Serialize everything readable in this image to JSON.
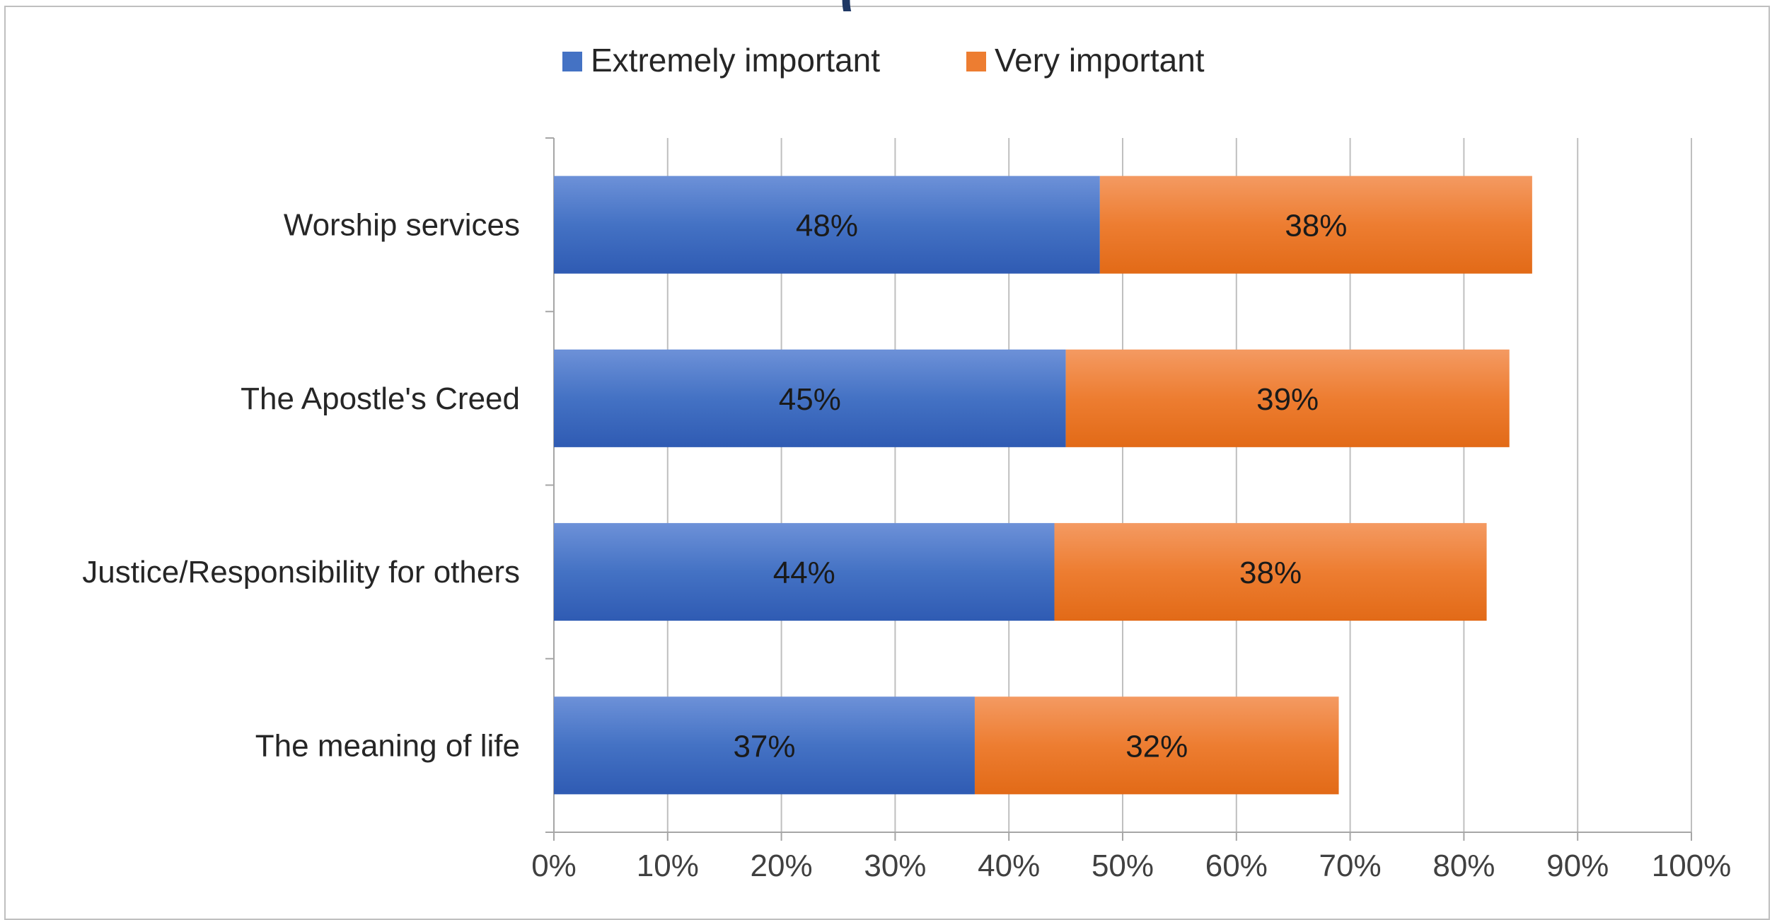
{
  "title_fragment": "(",
  "chart_data": {
    "type": "bar",
    "orientation": "horizontal",
    "stacked": true,
    "categories": [
      "Worship services",
      "The Apostle's Creed",
      "Justice/Responsibility for others",
      "The meaning of life"
    ],
    "series": [
      {
        "name": "Extremely important",
        "values": [
          48,
          45,
          44,
          37
        ],
        "labels": [
          "48%",
          "45%",
          "44%",
          "37%"
        ],
        "color": "#4472c4"
      },
      {
        "name": "Very important",
        "values": [
          38,
          39,
          38,
          32
        ],
        "labels": [
          "38%",
          "39%",
          "38%",
          "32%"
        ],
        "color": "#ed7d31"
      }
    ],
    "xlim": [
      0,
      100
    ],
    "xticks": [
      "0%",
      "10%",
      "20%",
      "30%",
      "40%",
      "50%",
      "60%",
      "70%",
      "80%",
      "90%",
      "100%"
    ],
    "grid": true,
    "legend_position": "top"
  }
}
